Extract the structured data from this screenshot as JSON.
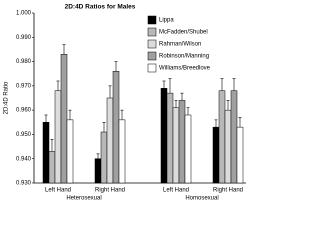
{
  "chart_data": {
    "type": "bar",
    "title": "2D:4D Ratios for Males",
    "y_label": "2D:4D Ratio",
    "categories": [
      "Left Hand",
      "Right Hand",
      "Left Hand",
      "Right Hand"
    ],
    "groups": [
      "Heterosexual",
      "Homosexual"
    ],
    "series": [
      {
        "name": "Lippa",
        "color": "#000000",
        "values": [
          0.955,
          0.94,
          0.969,
          0.953
        ],
        "errors": [
          0.003,
          0.002,
          0.003,
          0.003
        ]
      },
      {
        "name": "McFadden/Shubel",
        "color": "#b8b8b8",
        "values": [
          0.943,
          0.951,
          0.967,
          0.968
        ],
        "errors": [
          0.005,
          0.004,
          0.006,
          0.005
        ]
      },
      {
        "name": "Rahman/Wilson",
        "color": "#dcdcdc",
        "values": [
          0.968,
          0.965,
          0.961,
          0.96
        ],
        "errors": [
          0.004,
          0.005,
          0.003,
          0.004
        ]
      },
      {
        "name": "Robinson/Manning",
        "color": "#a0a0a0",
        "values": [
          0.983,
          0.976,
          0.964,
          0.968
        ],
        "errors": [
          0.004,
          0.004,
          0.003,
          0.005
        ]
      },
      {
        "name": "Williams/Breedlove",
        "color": "#ffffff",
        "values": [
          0.956,
          0.956,
          0.958,
          0.953
        ],
        "errors": [
          0.004,
          0.004,
          0.003,
          0.004
        ]
      }
    ],
    "ylim": [
      0.93,
      1.0
    ],
    "yticks": [
      {
        "value": 0.93,
        "label": "0.930"
      },
      {
        "value": 0.94,
        "label": "0.940"
      },
      {
        "value": 0.95,
        "label": "0.950"
      },
      {
        "value": 0.96,
        "label": "0.960"
      },
      {
        "value": 0.97,
        "label": "0.970"
      },
      {
        "value": 0.98,
        "label": "0.980"
      },
      {
        "value": 0.99,
        "label": "0.990"
      },
      {
        "value": 1.0,
        "label": "1.000"
      }
    ],
    "legend": "top-right"
  }
}
